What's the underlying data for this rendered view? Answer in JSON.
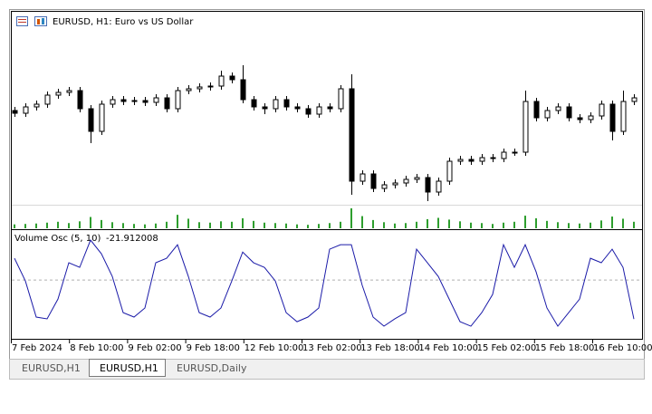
{
  "window": {
    "title": "EURUSD, H1:  Euro vs US Dollar",
    "tabs": [
      "EURUSD,H1",
      "EURUSD,H1",
      "EURUSD,Daily"
    ],
    "active_tab": 1
  },
  "x_axis": {
    "labels": [
      "7 Feb 2024",
      "8 Feb 10:00",
      "9 Feb 02:00",
      "9 Feb 18:00",
      "12 Feb 10:00",
      "13 Feb 02:00",
      "13 Feb 18:00",
      "14 Feb 10:00",
      "15 Feb 02:00",
      "15 Feb 18:00",
      "16 Feb 10:00"
    ]
  },
  "chart_data": [
    {
      "type": "candlestick",
      "ylim": [
        1.07,
        1.0914
      ],
      "up_color": "#ffffff",
      "down_color": "#000000",
      "wick_color": "#000000",
      "open": [
        1.0804,
        1.0801,
        1.0808,
        1.0811,
        1.0821,
        1.0824,
        1.0826,
        1.0806,
        1.0781,
        1.0811,
        1.0816,
        1.0814,
        1.0815,
        1.0813,
        1.0818,
        1.0806,
        1.0826,
        1.0828,
        1.083,
        1.0831,
        1.0842,
        1.0838,
        1.0816,
        1.0808,
        1.0806,
        1.0816,
        1.0808,
        1.0806,
        1.08,
        1.0808,
        1.0806,
        1.0828,
        1.0726,
        1.0734,
        1.0718,
        1.0722,
        1.0724,
        1.0728,
        1.073,
        1.0714,
        1.0726,
        1.0748,
        1.075,
        1.0748,
        1.0752,
        1.0751,
        1.0758,
        1.0758,
        1.0814,
        1.0796,
        1.0804,
        1.0808,
        1.0796,
        1.0794,
        1.0798,
        1.0811,
        1.0781,
        1.0814
      ],
      "high": [
        1.0808,
        1.0812,
        1.0815,
        1.0825,
        1.0828,
        1.083,
        1.083,
        1.081,
        1.0815,
        1.082,
        1.082,
        1.0819,
        1.0819,
        1.0822,
        1.0822,
        1.083,
        1.0832,
        1.0834,
        1.0835,
        1.0848,
        1.0846,
        1.0854,
        1.082,
        1.0812,
        1.082,
        1.082,
        1.0812,
        1.081,
        1.0812,
        1.0812,
        1.0832,
        1.0844,
        1.0738,
        1.0738,
        1.0726,
        1.0728,
        1.0732,
        1.0734,
        1.0734,
        1.073,
        1.0752,
        1.0754,
        1.0754,
        1.0756,
        1.0756,
        1.0762,
        1.0762,
        1.0826,
        1.0818,
        1.0808,
        1.0812,
        1.0812,
        1.08,
        1.0802,
        1.0815,
        1.0815,
        1.0826,
        1.0822
      ],
      "low": [
        1.0797,
        1.0797,
        1.0804,
        1.0807,
        1.0817,
        1.082,
        1.0802,
        1.0768,
        1.0777,
        1.0807,
        1.081,
        1.081,
        1.0809,
        1.0809,
        1.0802,
        1.0802,
        1.0822,
        1.0824,
        1.0826,
        1.0827,
        1.0834,
        1.0812,
        1.0804,
        1.08,
        1.0802,
        1.0804,
        1.0802,
        1.0796,
        1.0796,
        1.0802,
        1.0802,
        1.0711,
        1.0722,
        1.0714,
        1.0714,
        1.0718,
        1.072,
        1.0724,
        1.0704,
        1.071,
        1.0722,
        1.0744,
        1.0744,
        1.0744,
        1.0747,
        1.0747,
        1.0754,
        1.0754,
        1.0792,
        1.0792,
        1.08,
        1.0792,
        1.079,
        1.079,
        1.0794,
        1.0771,
        1.0777,
        1.081
      ],
      "close": [
        1.0801,
        1.0808,
        1.0811,
        1.0821,
        1.0824,
        1.0826,
        1.0806,
        1.0781,
        1.0811,
        1.0816,
        1.0814,
        1.0815,
        1.0813,
        1.0818,
        1.0806,
        1.0826,
        1.0828,
        1.083,
        1.0831,
        1.0842,
        1.0838,
        1.0816,
        1.0808,
        1.0806,
        1.0816,
        1.0808,
        1.0806,
        1.08,
        1.0808,
        1.0806,
        1.0828,
        1.0726,
        1.0734,
        1.0718,
        1.0722,
        1.0724,
        1.0728,
        1.073,
        1.0714,
        1.0726,
        1.0748,
        1.075,
        1.0748,
        1.0752,
        1.0751,
        1.0758,
        1.0758,
        1.0814,
        1.0796,
        1.0804,
        1.0808,
        1.0796,
        1.0794,
        1.0798,
        1.0811,
        1.0781,
        1.0814,
        1.0818
      ]
    },
    {
      "type": "bar",
      "ylim": [
        0,
        5000
      ],
      "color": "#2e9e2e",
      "values": [
        900,
        1000,
        1100,
        1300,
        1500,
        1200,
        1600,
        2600,
        1900,
        1400,
        1200,
        1000,
        900,
        1100,
        1500,
        3100,
        2200,
        1400,
        1300,
        1600,
        1500,
        2300,
        1700,
        1300,
        1200,
        1100,
        900,
        800,
        1000,
        1200,
        1500,
        4600,
        2800,
        1900,
        1400,
        1100,
        1200,
        1500,
        2100,
        2400,
        2000,
        1600,
        1300,
        1200,
        1000,
        1300,
        1500,
        2900,
        2300,
        1700,
        1400,
        1200,
        1100,
        1300,
        1800,
        2700,
        2200,
        1500
      ]
    },
    {
      "type": "line",
      "title": "Volume Osc (5, 10)",
      "ylim": [
        -33,
        27
      ],
      "levels": [
        0
      ],
      "color": "#1a1aa8",
      "level_color": "#b0b0b0",
      "values": [
        12.2,
        -0.5,
        -20.8,
        -21.8,
        -10.7,
        9.7,
        7.1,
        22.4,
        14.7,
        2.0,
        -18.3,
        -20.8,
        -15.7,
        9.7,
        12.2,
        19.8,
        2.0,
        -18.3,
        -20.8,
        -15.7,
        -0.5,
        15.7,
        9.7,
        7.1,
        -0.5,
        -18.3,
        -23.4,
        -20.8,
        -15.7,
        17.3,
        19.8,
        19.8,
        -3.0,
        -20.8,
        -25.9,
        -21.8,
        -18.3,
        17.3,
        9.7,
        2.0,
        -10.7,
        -23.4,
        -25.9,
        -18.3,
        -8.1,
        19.8,
        7.1,
        19.8,
        4.6,
        -15.7,
        -25.9,
        -18.3,
        -10.7,
        12.2,
        9.7,
        17.3,
        7.1,
        -21.912008
      ]
    }
  ]
}
